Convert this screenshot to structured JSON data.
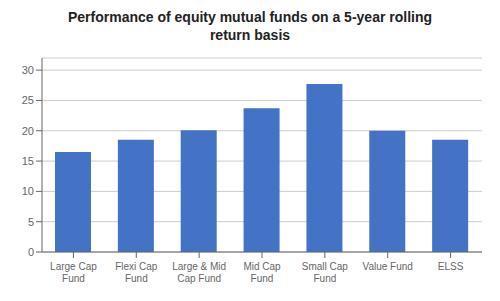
{
  "chart_data": {
    "type": "bar",
    "title": "Performance of equity mutual funds on a 5-year rolling\nreturn basis",
    "categories": [
      "Large Cap\nFund",
      "Flexi Cap\nFund",
      "Large & Mid\nCap Fund",
      "Mid Cap\nFund",
      "Small Cap\nFund",
      "Value Fund",
      "ELSS"
    ],
    "values": [
      16.5,
      18.5,
      20.1,
      23.7,
      27.7,
      20.0,
      18.5
    ],
    "color": "#4472C4",
    "ylim": [
      0,
      32
    ],
    "yticks": [
      0,
      5,
      10,
      15,
      20,
      25,
      30
    ],
    "grid": true
  }
}
